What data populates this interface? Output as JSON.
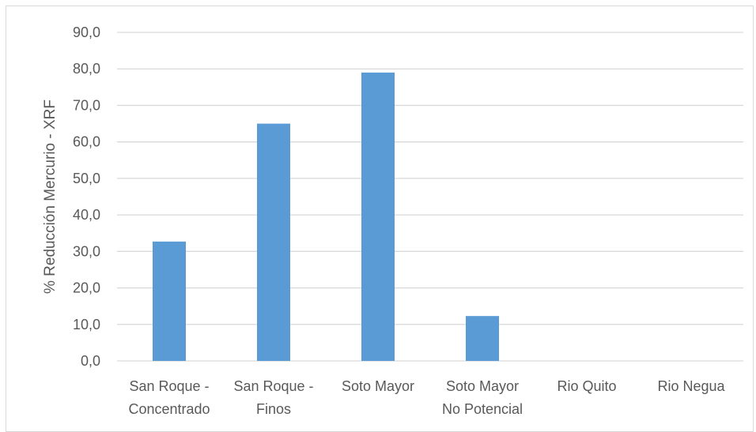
{
  "chart_data": {
    "type": "bar",
    "title": "",
    "xlabel": "",
    "ylabel": "% Reducción Mercurio - XRF",
    "categories": [
      [
        "San Roque -",
        "Concentrado"
      ],
      [
        "San Roque -",
        "Finos"
      ],
      [
        "Soto Mayor"
      ],
      [
        "Soto Mayor",
        "No Potencial"
      ],
      [
        "Rio Quito"
      ],
      [
        "Rio Negua"
      ]
    ],
    "values": [
      32.7,
      65.0,
      79.0,
      12.3,
      0,
      0
    ],
    "ylim": [
      0,
      90
    ],
    "yticks": [
      "0,0",
      "10,0",
      "20,0",
      "30,0",
      "40,0",
      "50,0",
      "60,0",
      "70,0",
      "80,0",
      "90,0"
    ],
    "grid": true,
    "legend": "none",
    "colors": {
      "bar": "#5b9bd5",
      "grid": "#d9d9d9",
      "text": "#595959"
    }
  }
}
